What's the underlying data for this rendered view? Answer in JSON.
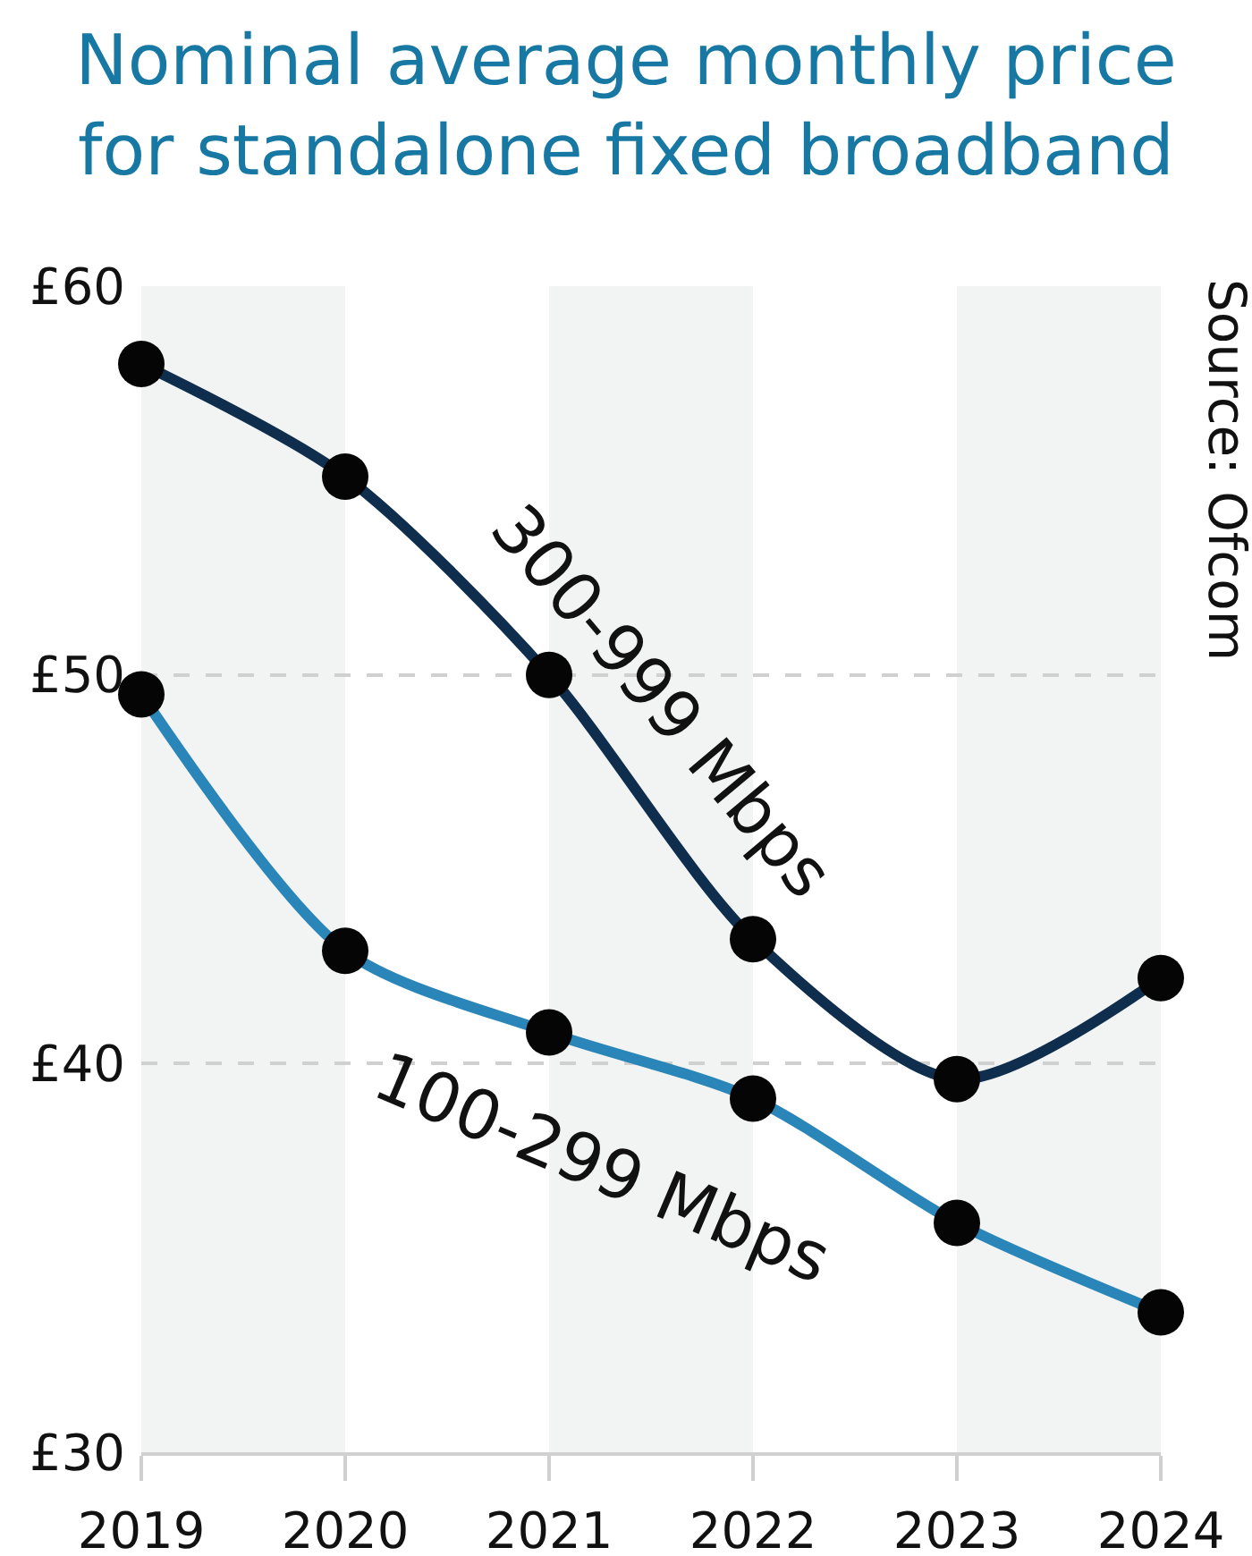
{
  "chart_data": {
    "type": "line",
    "title": "Nominal average monthly price for standalone fixed broadband",
    "annotations": [
      "Source: Ofcom"
    ],
    "x": [
      2019,
      2020,
      2021,
      2022,
      2023,
      2024
    ],
    "xlim": [
      2019,
      2024
    ],
    "xticks": [
      2019,
      2020,
      2021,
      2022,
      2023,
      2024
    ],
    "ylim": [
      30,
      60
    ],
    "yticks": [
      {
        "value": 30,
        "label": "£30"
      },
      {
        "value": 40,
        "label": "£40"
      },
      {
        "value": 50,
        "label": "£50"
      },
      {
        "value": 60,
        "label": "£60"
      }
    ],
    "series": [
      {
        "name": "300-999 Mbps",
        "color": "#0f2e4d",
        "values": [
          58.0,
          55.1,
          50.0,
          43.2,
          39.6,
          42.2
        ]
      },
      {
        "name": "100-299 Mbps",
        "color": "#2a86b8",
        "values": [
          49.5,
          42.9,
          40.8,
          39.1,
          35.9,
          33.6
        ]
      }
    ],
    "bands": [
      {
        "axis": "x",
        "from": 2019,
        "to": 2020,
        "color": "#f2f3f3"
      },
      {
        "axis": "x",
        "from": 2021,
        "to": 2022,
        "color": "#f2f3f3"
      },
      {
        "axis": "x",
        "from": 2023,
        "to": 2024,
        "color": "#f2f3f3"
      }
    ],
    "grid": "y",
    "legend": false,
    "marker": "circle",
    "line_style": "solid"
  }
}
